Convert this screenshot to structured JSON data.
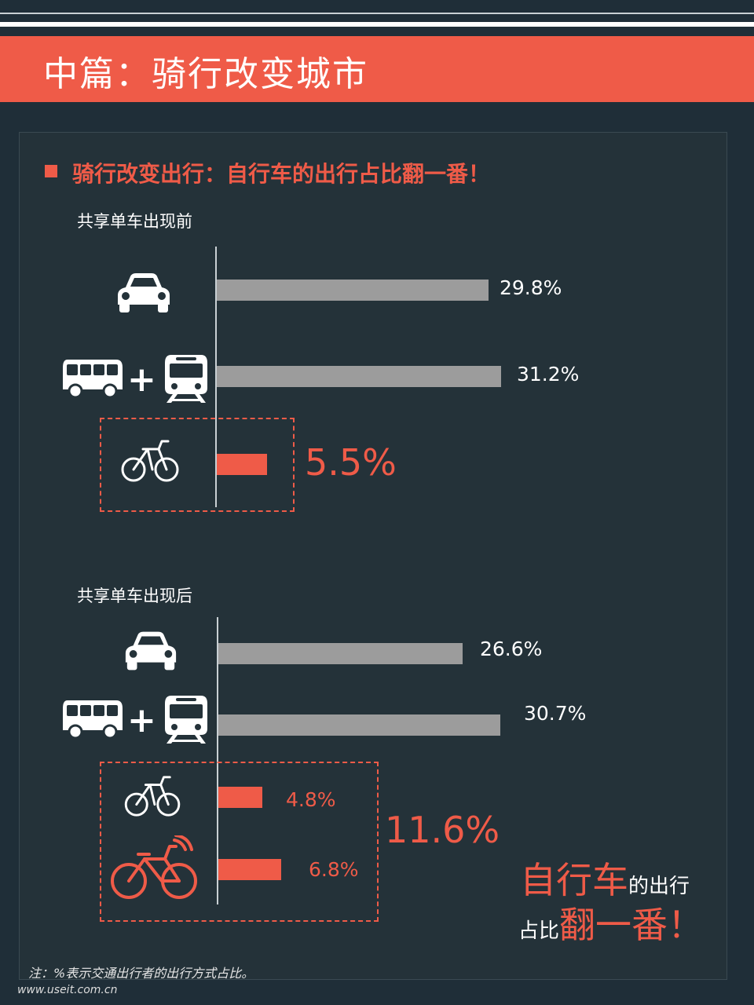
{
  "header": {
    "title": "中篇：骑行改变城市"
  },
  "section": {
    "title": "骑行改变出行：自行车的出行占比翻一番！"
  },
  "colors": {
    "accent": "#ef5b48",
    "bar_gray": "#9c9c9c",
    "background": "#1f2e38"
  },
  "chart_data": [
    {
      "type": "bar",
      "orientation": "horizontal",
      "title": "共享单车出现前",
      "categories": [
        "car-icon",
        "bus-icon + train-icon",
        "bicycle-icon"
      ],
      "values": [
        29.8,
        31.2,
        5.5
      ],
      "labels": [
        "29.8%",
        "31.2%",
        "5.5%"
      ],
      "highlight": [
        false,
        false,
        true
      ],
      "unit": "%"
    },
    {
      "type": "bar",
      "orientation": "horizontal",
      "title": "共享单车出现后",
      "categories": [
        "car-icon",
        "bus-icon + train-icon",
        "bicycle-icon",
        "shared-bike-icon"
      ],
      "values": [
        26.6,
        30.7,
        4.8,
        6.8
      ],
      "labels": [
        "26.6%",
        "30.7%",
        "4.8%",
        "6.8%"
      ],
      "highlight": [
        false,
        false,
        true,
        true
      ],
      "group_total_label": "11.6%",
      "unit": "%"
    }
  ],
  "callout": {
    "line1_big": "自行车",
    "line1_small": "的出行",
    "line2_small": "占比",
    "line2_big": "翻一番！"
  },
  "note": "注：%表示交通出行者的出行方式占比。",
  "footer": "www.useit.com.cn"
}
